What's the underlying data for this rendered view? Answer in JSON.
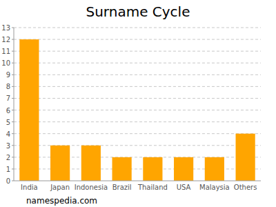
{
  "chart_data": {
    "type": "bar",
    "title": "Surname Cycle",
    "categories": [
      "India",
      "Japan",
      "Indonesia",
      "Brazil",
      "Thailand",
      "USA",
      "Malaysia",
      "Others"
    ],
    "values": [
      12,
      3,
      3,
      2,
      2,
      2,
      2,
      4
    ],
    "color": "#ffa500",
    "ylim": [
      0,
      13
    ],
    "yticks": [
      0,
      1,
      2,
      3,
      4,
      5,
      6,
      7,
      8,
      9,
      10,
      11,
      12,
      13
    ],
    "grid": true,
    "source": "namespedia.com"
  }
}
